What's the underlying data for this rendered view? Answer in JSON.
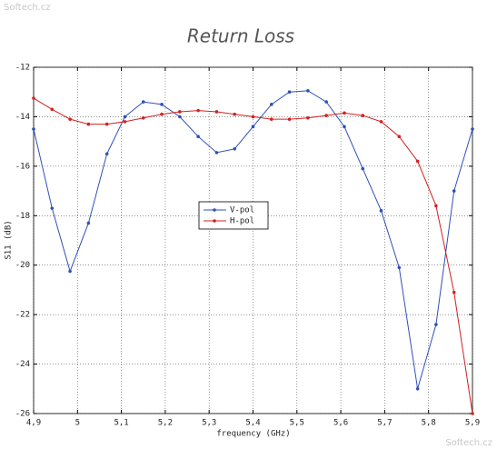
{
  "watermarks": [
    "Softech.cz",
    "Softech.cz"
  ],
  "chart_data": {
    "type": "line",
    "title": "Return Loss",
    "x_label": "frequency (GHz)",
    "y_label": "S11 (dB)",
    "x": [
      4.9,
      4.942,
      4.983,
      5.025,
      5.067,
      5.108,
      5.15,
      5.192,
      5.233,
      5.275,
      5.317,
      5.358,
      5.4,
      5.442,
      5.483,
      5.525,
      5.567,
      5.608,
      5.65,
      5.692,
      5.733,
      5.775,
      5.817,
      5.858,
      5.9
    ],
    "series": [
      {
        "name": "V-pol",
        "color": "#3050b8",
        "values": [
          -14.5,
          -17.7,
          -20.25,
          -18.3,
          -15.5,
          -14.0,
          -13.4,
          -13.5,
          -14.0,
          -14.8,
          -15.45,
          -15.3,
          -14.4,
          -13.5,
          -13.0,
          -12.95,
          -13.4,
          -14.4,
          -16.1,
          -17.8,
          -20.1,
          -25.0,
          -22.4,
          -17.0,
          -14.5
        ]
      },
      {
        "name": "H-pol",
        "color": "#d42020",
        "values": [
          -13.25,
          -13.7,
          -14.1,
          -14.3,
          -14.3,
          -14.2,
          -14.05,
          -13.9,
          -13.8,
          -13.75,
          -13.8,
          -13.9,
          -14.0,
          -14.1,
          -14.1,
          -14.05,
          -13.95,
          -13.85,
          -13.95,
          -14.2,
          -14.8,
          -15.8,
          -17.6,
          -21.1,
          -26.0
        ]
      }
    ],
    "xlim": [
      4.9,
      5.9
    ],
    "xticks": [
      {
        "value": 4.9,
        "label": "4,9"
      },
      5,
      {
        "value": 5.1,
        "label": "5,1"
      },
      {
        "value": 5.2,
        "label": "5,2"
      },
      {
        "value": 5.3,
        "label": "5,3"
      },
      {
        "value": 5.4,
        "label": "5,4"
      },
      {
        "value": 5.5,
        "label": "5,5"
      },
      {
        "value": 5.6,
        "label": "5,6"
      },
      {
        "value": 5.7,
        "label": "5,7"
      },
      {
        "value": 5.8,
        "label": "5,8"
      },
      {
        "value": 5.9,
        "label": "5,9"
      }
    ],
    "ylim": [
      -26,
      -12
    ],
    "yticks": [
      -26,
      -24,
      -22,
      -20,
      -18,
      -16,
      -14,
      -12
    ],
    "grid": true,
    "legend": "center-left"
  }
}
